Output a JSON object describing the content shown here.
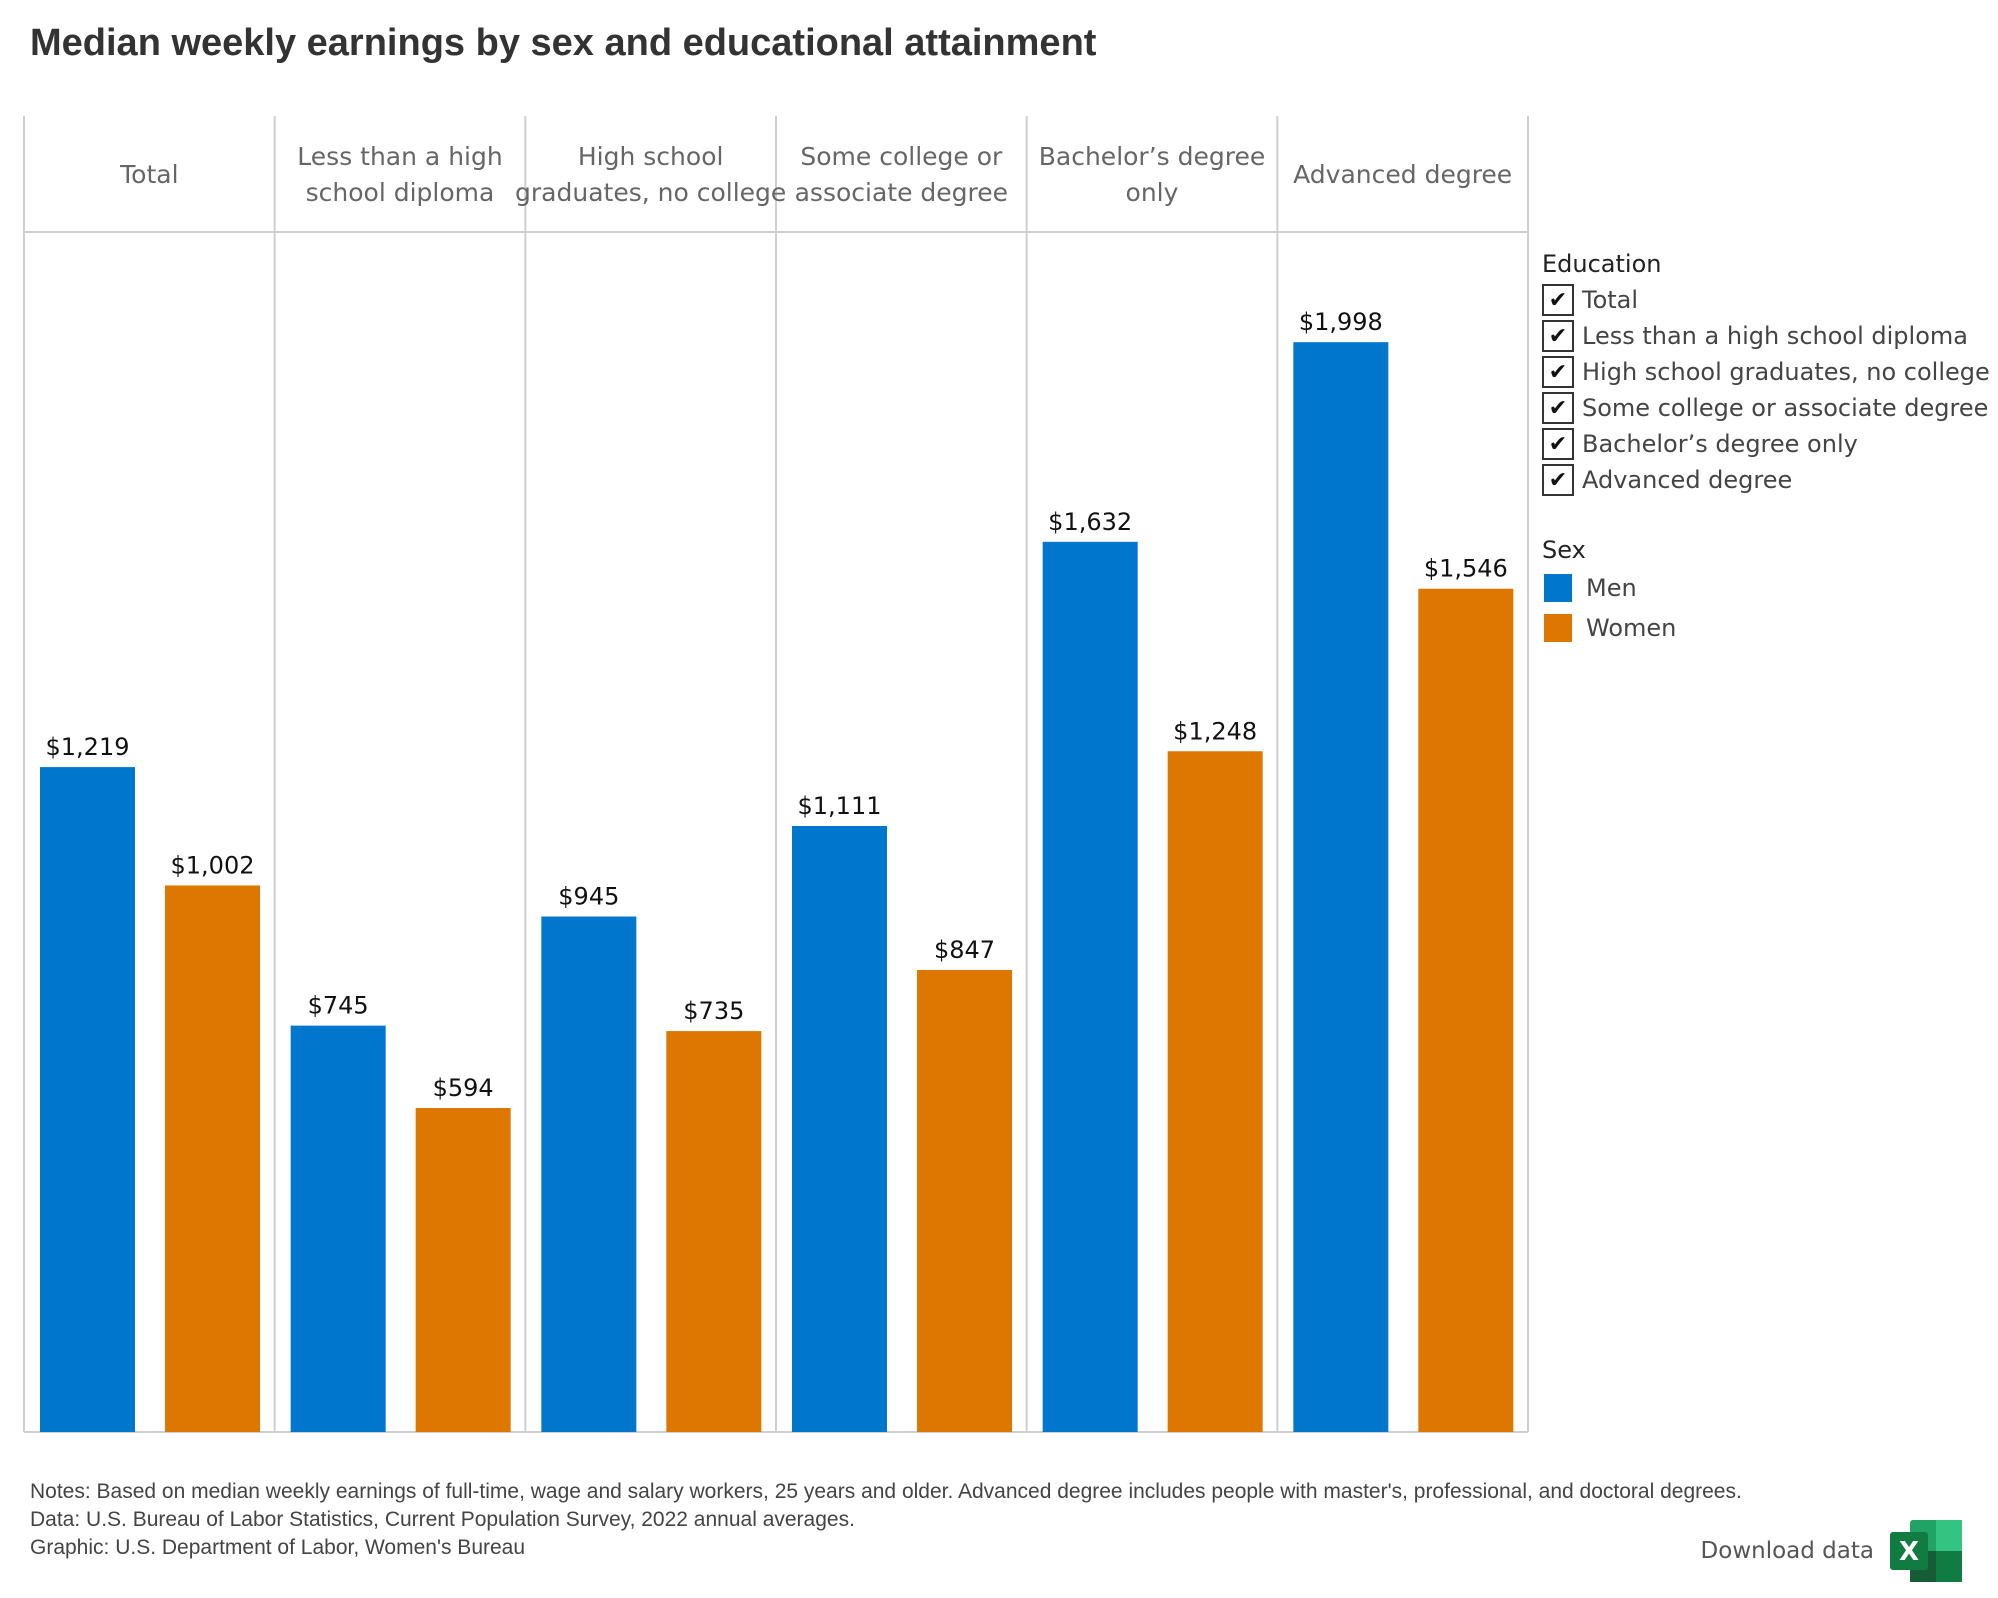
{
  "title": "Median weekly earnings by sex and educational attainment",
  "colors": {
    "men": "#0077CC",
    "women": "#DD7700",
    "grid": "#cfcfcf"
  },
  "chart_data": {
    "type": "bar",
    "title": "Median weekly earnings by sex and educational attainment",
    "categories": [
      "Total",
      "Less than a high school diploma",
      "High school graduates, no college",
      "Some college or associate degree",
      "Bachelor’s degree only",
      "Advanced degree"
    ],
    "category_header_lines": [
      [
        "Total"
      ],
      [
        "Less than a high",
        "school diploma"
      ],
      [
        "High school",
        "graduates, no college"
      ],
      [
        "Some college or",
        "associate degree"
      ],
      [
        "Bachelor’s degree",
        "only"
      ],
      [
        "Advanced degree"
      ]
    ],
    "series": [
      {
        "name": "Men",
        "values": [
          1219,
          745,
          945,
          1111,
          1632,
          1998
        ],
        "labels": [
          "$1,219",
          "$745",
          "$945",
          "$1,111",
          "$1,632",
          "$1,998"
        ]
      },
      {
        "name": "Women",
        "values": [
          1002,
          594,
          735,
          847,
          1248,
          1546
        ],
        "labels": [
          "$1,002",
          "$594",
          "$735",
          "$847",
          "$1,248",
          "$1,546"
        ]
      }
    ],
    "ylim": [
      0,
      2200
    ],
    "grid": false,
    "legend_position": "right"
  },
  "legend": {
    "education_title": "Education",
    "education_items": [
      "Total",
      "Less than a high school diploma",
      "High school graduates, no college",
      "Some college or associate degree",
      "Bachelor’s degree only",
      "Advanced degree"
    ],
    "check_glyph": "✔",
    "sex_title": "Sex",
    "sex_items": [
      "Men",
      "Women"
    ]
  },
  "notes": [
    "Notes: Based on median weekly earnings of full-time, wage and salary workers, 25 years and older. Advanced degree includes people with master's, professional, and doctoral degrees.",
    "Data: U.S. Bureau of Labor Statistics, Current Population Survey, 2022 annual averages.",
    "Graphic: U.S. Department of Labor, Women's Bureau"
  ],
  "download": {
    "label": "Download data",
    "icon": "excel-icon",
    "icon_letter": "X"
  }
}
